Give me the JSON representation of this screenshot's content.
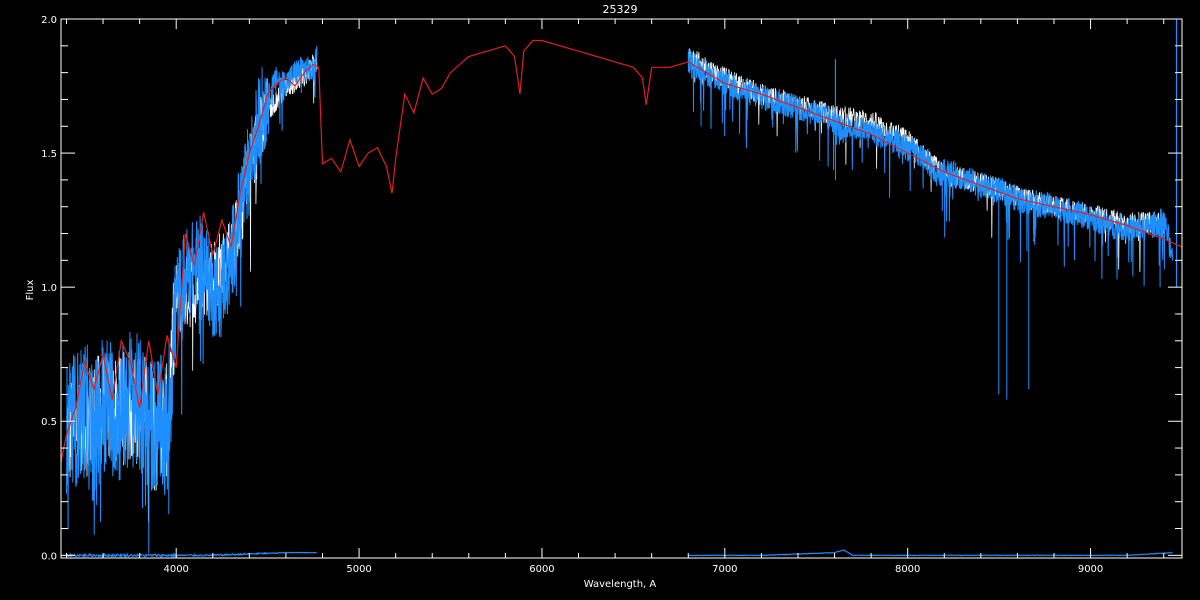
{
  "chart_data": {
    "type": "line",
    "title": "25329",
    "xlabel": "Wavelength, A",
    "ylabel": "Flux",
    "xlim": [
      3370,
      9500
    ],
    "ylim": [
      -0.01,
      2.0
    ],
    "x_ticks": [
      {
        "value": 4000,
        "label": "4000"
      },
      {
        "value": 5000,
        "label": "5000"
      },
      {
        "value": 6000,
        "label": "6000"
      },
      {
        "value": 7000,
        "label": "7000"
      },
      {
        "value": 8000,
        "label": "8000"
      },
      {
        "value": 9000,
        "label": "9000"
      }
    ],
    "y_ticks": [
      {
        "value": 0.0,
        "label": "0.0"
      },
      {
        "value": 0.5,
        "label": "0.5"
      },
      {
        "value": 1.0,
        "label": "1.0"
      },
      {
        "value": 1.5,
        "label": "1.5"
      },
      {
        "value": 2.0,
        "label": "2.0"
      }
    ],
    "grid": false,
    "legend": "none",
    "colors": {
      "background": "#000000",
      "axes": "#ffffff",
      "model": "#e0201c",
      "observed": "#1e8fff",
      "observed_raw": "#ffffff",
      "error": "#1e8fff"
    },
    "series": [
      {
        "role": "observed_raw",
        "segments": [
          {
            "x": [
              3400,
              3600,
              3800,
              3950,
              4000,
              4200,
              4300,
              4400,
              4500,
              4600,
              4700,
              4770
            ],
            "y": [
              0.45,
              0.55,
              0.55,
              0.5,
              0.95,
              1.05,
              1.1,
              1.45,
              1.65,
              1.75,
              1.78,
              1.85
            ]
          },
          {
            "x": [
              6800,
              7000,
              7200,
              7400,
              7600,
              7800,
              8000,
              8100,
              8200,
              8400,
              8600,
              8800,
              9000,
              9200,
              9400
            ],
            "y": [
              1.86,
              1.78,
              1.72,
              1.68,
              1.64,
              1.62,
              1.55,
              1.48,
              1.42,
              1.39,
              1.34,
              1.3,
              1.27,
              1.24,
              1.24
            ]
          }
        ]
      },
      {
        "role": "observed",
        "segments": [
          {
            "x": [
              3400,
              3450,
              3500,
              3550,
              3600,
              3650,
              3700,
              3750,
              3800,
              3850,
              3900,
              3950,
              4000,
              4050,
              4100,
              4150,
              4200,
              4250,
              4300,
              4350,
              4400,
              4450,
              4500,
              4550,
              4600,
              4650,
              4700,
              4750,
              4770
            ],
            "y": [
              0.45,
              0.5,
              0.55,
              0.45,
              0.58,
              0.55,
              0.52,
              0.6,
              0.55,
              0.48,
              0.5,
              0.45,
              0.95,
              1.05,
              1.08,
              1.1,
              0.98,
              1.02,
              1.1,
              1.3,
              1.45,
              1.62,
              1.7,
              1.78,
              1.76,
              1.8,
              1.82,
              1.8,
              1.86
            ]
          },
          {
            "x": [
              6800,
              6900,
              7000,
              7100,
              7200,
              7300,
              7400,
              7500,
              7600,
              7650,
              7700,
              7800,
              7900,
              8000,
              8100,
              8150,
              8200,
              8300,
              8400,
              8500,
              8600,
              8700,
              8800,
              8900,
              9000,
              9100,
              9200,
              9300,
              9400,
              9450
            ],
            "y": [
              1.85,
              1.8,
              1.76,
              1.73,
              1.71,
              1.69,
              1.67,
              1.65,
              1.62,
              1.58,
              1.6,
              1.58,
              1.55,
              1.52,
              1.48,
              1.42,
              1.43,
              1.41,
              1.38,
              1.36,
              1.33,
              1.31,
              1.3,
              1.28,
              1.26,
              1.23,
              1.22,
              1.22,
              1.25,
              1.12
            ]
          }
        ]
      },
      {
        "role": "model",
        "x": [
          3370,
          3400,
          3450,
          3500,
          3550,
          3600,
          3650,
          3700,
          3750,
          3800,
          3850,
          3900,
          3950,
          4000,
          4050,
          4100,
          4150,
          4200,
          4250,
          4300,
          4350,
          4400,
          4450,
          4500,
          4550,
          4600,
          4650,
          4700,
          4750,
          4780,
          4800,
          4850,
          4900,
          4950,
          5000,
          5050,
          5100,
          5150,
          5180,
          5200,
          5250,
          5300,
          5350,
          5400,
          5450,
          5500,
          5600,
          5700,
          5800,
          5850,
          5880,
          5900,
          5950,
          6000,
          6100,
          6200,
          6300,
          6400,
          6500,
          6550,
          6570,
          6600,
          6700,
          6800,
          7000,
          7200,
          7400,
          7600,
          7800,
          8000,
          8200,
          8400,
          8600,
          8800,
          9000,
          9200,
          9400,
          9500
        ],
        "y": [
          0.35,
          0.45,
          0.55,
          0.72,
          0.62,
          0.75,
          0.58,
          0.8,
          0.72,
          0.55,
          0.8,
          0.6,
          0.82,
          0.7,
          1.2,
          1.08,
          1.28,
          1.12,
          1.25,
          1.15,
          1.35,
          1.5,
          1.6,
          1.72,
          1.76,
          1.78,
          1.75,
          1.8,
          1.83,
          1.82,
          1.46,
          1.48,
          1.43,
          1.55,
          1.45,
          1.5,
          1.52,
          1.45,
          1.35,
          1.48,
          1.72,
          1.65,
          1.78,
          1.72,
          1.74,
          1.8,
          1.86,
          1.88,
          1.9,
          1.86,
          1.72,
          1.88,
          1.92,
          1.92,
          1.9,
          1.88,
          1.86,
          1.84,
          1.82,
          1.78,
          1.68,
          1.82,
          1.82,
          1.84,
          1.76,
          1.72,
          1.67,
          1.62,
          1.57,
          1.5,
          1.43,
          1.38,
          1.33,
          1.3,
          1.27,
          1.23,
          1.18,
          1.15
        ]
      },
      {
        "role": "error",
        "segments": [
          {
            "x": [
              3400,
              3800,
              4200,
              4600,
              4770
            ],
            "y": [
              0.0,
              0.0,
              0.0,
              0.01,
              0.01
            ]
          },
          {
            "x": [
              6800,
              7200,
              7600,
              7650,
              7700,
              8000,
              8400,
              8800,
              9200,
              9450
            ],
            "y": [
              0.0,
              0.0,
              0.01,
              0.02,
              0.0,
              0.0,
              0.0,
              0.0,
              0.0,
              0.01
            ]
          }
        ]
      }
    ]
  }
}
